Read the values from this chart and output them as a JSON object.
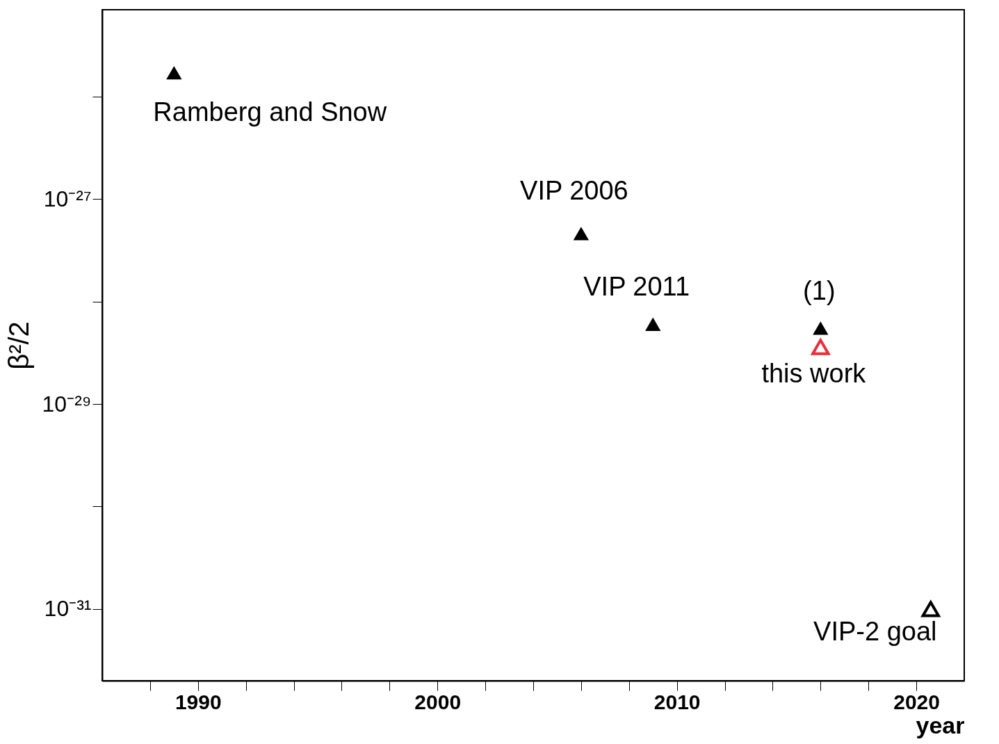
{
  "chart_data": {
    "type": "scatter",
    "xlabel": "year",
    "ylabel": "β²/2",
    "log": "y",
    "marker": "triangle",
    "xlim": [
      1986,
      2022
    ],
    "xticks": [
      {
        "value": 1988,
        "label": null
      },
      1990,
      {
        "value": 1992,
        "label": null
      },
      {
        "value": 1994,
        "label": null
      },
      {
        "value": 1996,
        "label": null
      },
      {
        "value": 1998,
        "label": null
      },
      2000,
      {
        "value": 2002,
        "label": null
      },
      {
        "value": 2004,
        "label": null
      },
      {
        "value": 2006,
        "label": null
      },
      {
        "value": 2008,
        "label": null
      },
      2010,
      {
        "value": 2012,
        "label": null
      },
      {
        "value": 2014,
        "label": null
      },
      {
        "value": 2016,
        "label": null
      },
      {
        "value": 2018,
        "label": null
      },
      2020
    ],
    "ylim": [
      2e-32,
      7e-26
    ],
    "yticks": [
      {
        "value": 1e-31,
        "label": "10⁻³¹"
      },
      {
        "value": 1e-30,
        "label": null
      },
      {
        "value": 1e-29,
        "label": "10⁻²⁹"
      },
      {
        "value": 1e-28,
        "label": null
      },
      {
        "value": 1e-27,
        "label": "10⁻²⁷"
      },
      {
        "value": 1e-26,
        "label": null
      }
    ],
    "series": [
      {
        "name": "Ramberg and Snow",
        "color": "#000000",
        "x": [
          1989
        ],
        "values": [
          1.7e-26
        ]
      },
      {
        "name": "VIP 2006",
        "color": "#000000",
        "x": [
          2006
        ],
        "values": [
          4.6e-28
        ]
      },
      {
        "name": "VIP 2011",
        "color": "#000000",
        "x": [
          2009
        ],
        "values": [
          6e-29
        ]
      },
      {
        "name": "(1)",
        "color": "#000000",
        "x": [
          2016
        ],
        "values": [
          5.5e-29
        ]
      },
      {
        "name": "this work",
        "color": "#e8303a",
        "x": [
          2016
        ],
        "values": [
          3.6e-29
        ]
      },
      {
        "name": "VIP-2 goal",
        "color": "#000000",
        "x": [
          2020.6
        ],
        "values": [
          1e-31
        ]
      }
    ]
  }
}
